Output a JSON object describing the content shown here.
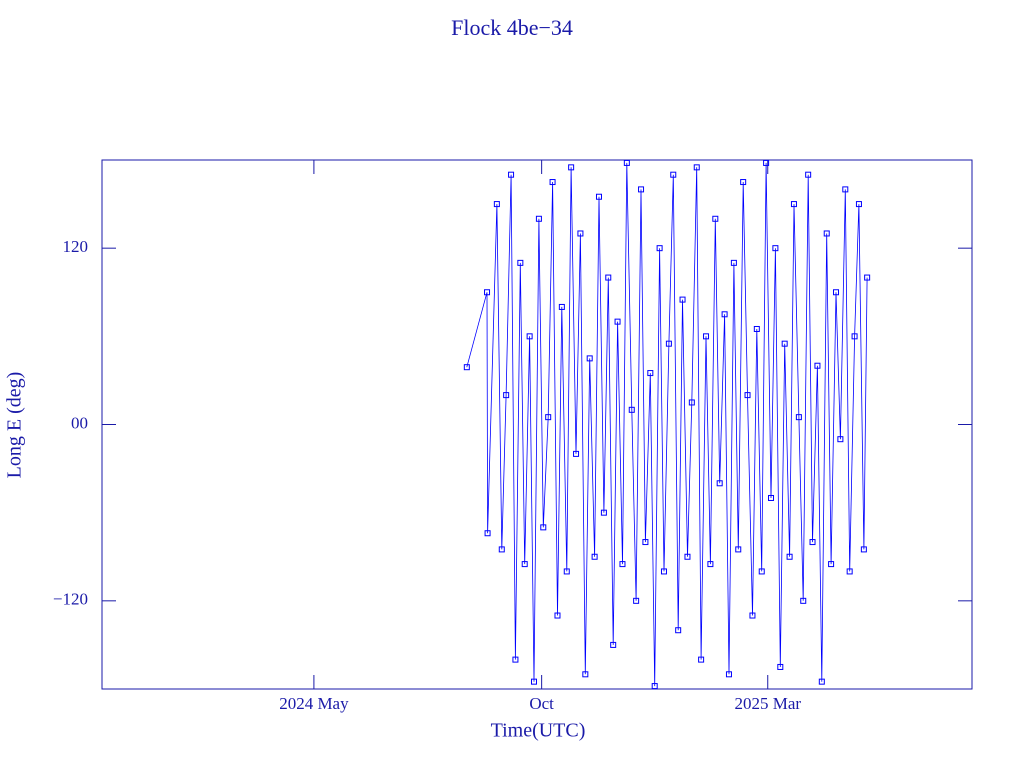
{
  "chart_data": {
    "type": "line",
    "title": "Flock 4be−34",
    "xlabel": "Time(UTC)",
    "ylabel": "Long E (deg)",
    "xlim": [
      2023.945,
      2025.538
    ],
    "xticks": [
      {
        "value": 2024.333,
        "label": "2024 May"
      },
      {
        "value": 2024.75,
        "label": "Oct"
      },
      {
        "value": 2025.164,
        "label": "2025 Mar"
      }
    ],
    "ylim": [
      -180,
      180
    ],
    "yticks": [
      {
        "value": -120,
        "label": "−120"
      },
      {
        "value": 0,
        "label": "00"
      },
      120
    ],
    "color": "#0000ff",
    "x": [
      2024.613,
      2024.65,
      2024.651,
      2024.668,
      2024.677,
      2024.685,
      2024.694,
      2024.702,
      2024.711,
      2024.719,
      2024.728,
      2024.736,
      2024.745,
      2024.753,
      2024.762,
      2024.77,
      2024.779,
      2024.787,
      2024.796,
      2024.804,
      2024.813,
      2024.821,
      2024.83,
      2024.838,
      2024.847,
      2024.855,
      2024.864,
      2024.872,
      2024.881,
      2024.889,
      2024.898,
      2024.906,
      2024.915,
      2024.923,
      2024.932,
      2024.94,
      2024.949,
      2024.957,
      2024.966,
      2024.974,
      2024.983,
      2024.991,
      2025.0,
      2025.008,
      2025.017,
      2025.025,
      2025.034,
      2025.042,
      2025.051,
      2025.059,
      2025.068,
      2025.076,
      2025.085,
      2025.093,
      2025.102,
      2025.11,
      2025.119,
      2025.127,
      2025.136,
      2025.144,
      2025.153,
      2025.161,
      2025.17,
      2025.178,
      2025.187,
      2025.195,
      2025.204,
      2025.212,
      2025.221,
      2025.229,
      2025.238,
      2025.246,
      2025.255,
      2025.263,
      2025.272,
      2025.28,
      2025.289,
      2025.297,
      2025.306,
      2025.314,
      2025.323,
      2025.331,
      2025.34,
      2025.346
    ],
    "values": [
      39,
      90,
      -74,
      150,
      -85,
      20,
      170,
      -160,
      110,
      -95,
      60,
      -175,
      140,
      -70,
      5,
      165,
      -130,
      80,
      -100,
      175,
      -20,
      130,
      -170,
      45,
      -90,
      155,
      -60,
      100,
      -150,
      70,
      -95,
      178,
      10,
      -120,
      160,
      -80,
      35,
      -178,
      120,
      -100,
      55,
      170,
      -140,
      85,
      -90,
      15,
      175,
      -160,
      60,
      -95,
      140,
      -40,
      75,
      -170,
      110,
      -85,
      165,
      20,
      -130,
      65,
      -100,
      178,
      -50,
      120,
      -165,
      55,
      -90,
      150,
      5,
      -120,
      170,
      -80,
      40,
      -175,
      130,
      -95,
      90,
      -10,
      160,
      -100,
      60,
      150,
      -85,
      100
    ]
  }
}
